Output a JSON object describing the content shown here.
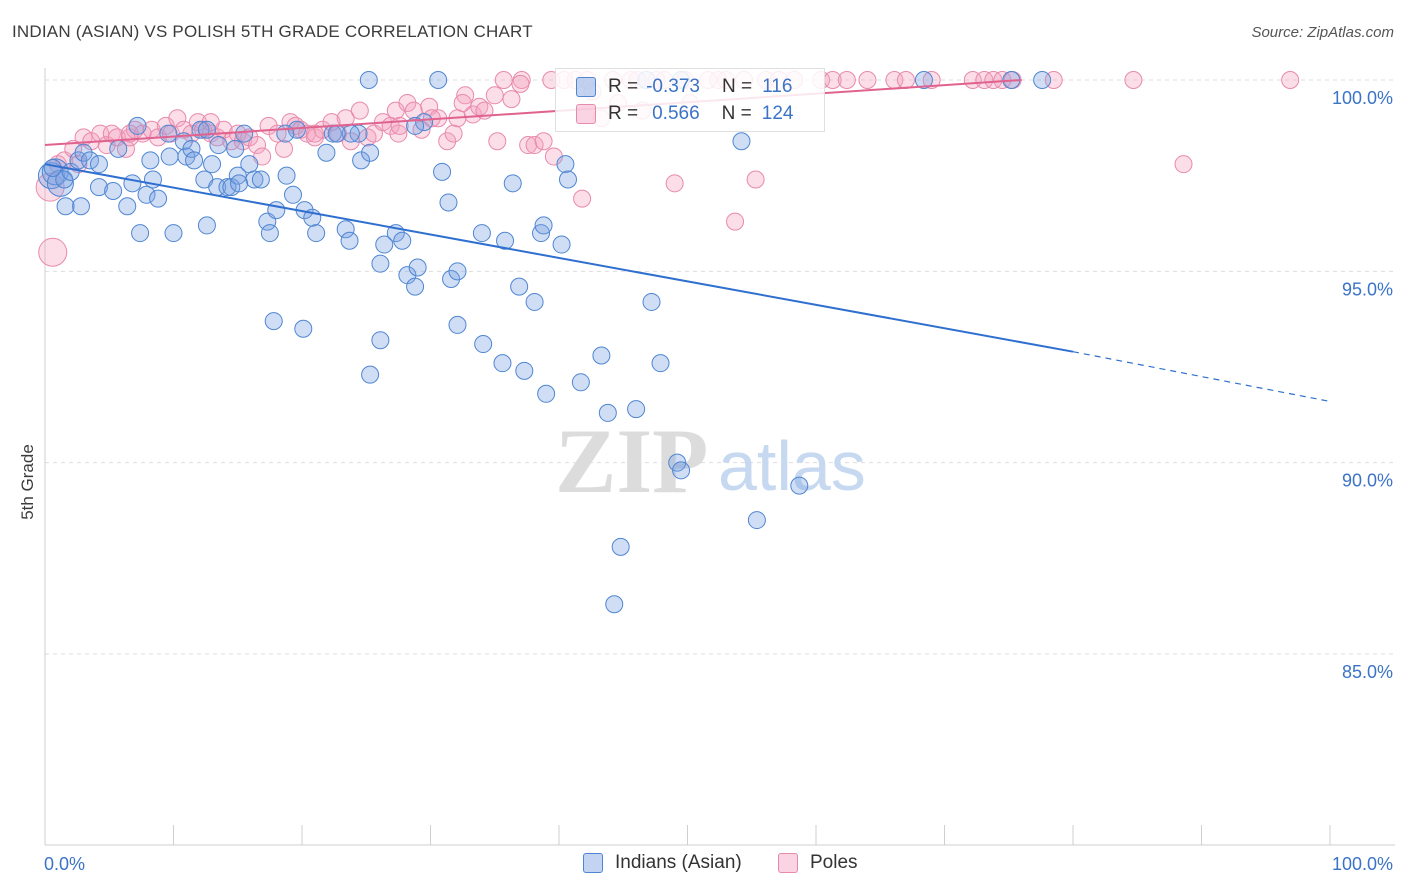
{
  "header": {
    "title": "INDIAN (ASIAN) VS POLISH 5TH GRADE CORRELATION CHART",
    "source": "Source: ZipAtlas.com"
  },
  "colors": {
    "blue_fill": "rgba(120,160,225,0.35)",
    "blue_stroke": "#4f86d2",
    "blue_line": "#2f6fd0",
    "pink_fill": "rgba(244,160,190,0.35)",
    "pink_stroke": "#e88aac",
    "pink_line": "#e0628e",
    "tick_text": "#3b73c6",
    "grid": "#dddddd"
  },
  "legend_top": {
    "rows": [
      {
        "r_label": "R =",
        "r_value": "-0.373",
        "n_label": "N =",
        "n_value": "116"
      },
      {
        "r_label": "R =",
        "r_value": "0.566",
        "n_label": "N =",
        "n_value": "124"
      }
    ]
  },
  "legend_bottom": [
    "Indians (Asian)",
    "Poles"
  ],
  "chart_data": {
    "type": "scatter",
    "title": "INDIAN (ASIAN) VS POLISH 5TH GRADE CORRELATION CHART",
    "xlabel": "",
    "ylabel": "5th Grade",
    "xlim": [
      0,
      100
    ],
    "ylim": [
      80.2,
      100.4
    ],
    "x_tick_labels": [
      "0.0%",
      "100.0%"
    ],
    "y_ticks": [
      100,
      95,
      90,
      85
    ],
    "y_tick_labels": [
      "100.0%",
      "95.0%",
      "90.0%",
      "85.0%"
    ],
    "watermark": "ZIPatlas",
    "series": [
      {
        "name": "Indians (Asian)",
        "r": -0.373,
        "n": 116,
        "trend": {
          "x0": 0,
          "y0": 97.8,
          "x1": 80,
          "y1": 92.9,
          "dash_to_x": 100,
          "dash_to_y": 91.6
        },
        "points": [
          [
            0.5,
            97.5
          ],
          [
            0.8,
            97.6
          ],
          [
            1.2,
            97.3
          ],
          [
            1.5,
            97.4
          ],
          [
            0.6,
            97.7
          ],
          [
            2.0,
            97.6
          ],
          [
            2.6,
            97.9
          ],
          [
            3.0,
            98.1
          ],
          [
            3.5,
            97.9
          ],
          [
            4.2,
            97.8
          ],
          [
            5.7,
            98.2
          ],
          [
            2.8,
            96.7
          ],
          [
            4.2,
            97.2
          ],
          [
            5.3,
            97.1
          ],
          [
            6.4,
            96.7
          ],
          [
            6.8,
            97.3
          ],
          [
            7.4,
            96.0
          ],
          [
            7.9,
            97.0
          ],
          [
            8.2,
            97.9
          ],
          [
            8.4,
            97.4
          ],
          [
            8.8,
            96.9
          ],
          [
            9.7,
            98.0
          ],
          [
            10.0,
            96.0
          ],
          [
            10.8,
            98.4
          ],
          [
            11.0,
            98.0
          ],
          [
            11.4,
            98.2
          ],
          [
            11.6,
            97.9
          ],
          [
            12.1,
            98.7
          ],
          [
            12.4,
            97.4
          ],
          [
            12.6,
            96.2
          ],
          [
            13.0,
            97.8
          ],
          [
            13.4,
            97.2
          ],
          [
            13.5,
            98.3
          ],
          [
            14.2,
            97.2
          ],
          [
            14.5,
            97.2
          ],
          [
            14.8,
            98.2
          ],
          [
            15.0,
            97.5
          ],
          [
            15.5,
            98.6
          ],
          [
            15.9,
            97.8
          ],
          [
            16.3,
            97.4
          ],
          [
            16.8,
            97.4
          ],
          [
            17.3,
            96.3
          ],
          [
            17.5,
            96.0
          ],
          [
            18.0,
            96.6
          ],
          [
            18.8,
            97.5
          ],
          [
            19.3,
            97.0
          ],
          [
            19.6,
            98.7
          ],
          [
            20.2,
            96.6
          ],
          [
            20.8,
            96.4
          ],
          [
            21.1,
            96.0
          ],
          [
            21.9,
            98.1
          ],
          [
            22.4,
            98.6
          ],
          [
            23.4,
            96.1
          ],
          [
            23.7,
            95.8
          ],
          [
            24.4,
            98.6
          ],
          [
            24.6,
            97.9
          ],
          [
            25.3,
            98.1
          ],
          [
            26.1,
            95.2
          ],
          [
            26.4,
            95.7
          ],
          [
            27.3,
            96.0
          ],
          [
            27.8,
            95.8
          ],
          [
            28.2,
            94.9
          ],
          [
            28.8,
            94.6
          ],
          [
            29.0,
            95.1
          ],
          [
            29.5,
            98.9
          ],
          [
            26.1,
            93.2
          ],
          [
            25.3,
            92.3
          ],
          [
            20.1,
            93.5
          ],
          [
            17.8,
            93.7
          ],
          [
            30.9,
            97.6
          ],
          [
            31.6,
            94.8
          ],
          [
            32.1,
            95.0
          ],
          [
            32.1,
            93.6
          ],
          [
            34.0,
            96.0
          ],
          [
            34.1,
            93.1
          ],
          [
            35.6,
            92.6
          ],
          [
            35.8,
            95.8
          ],
          [
            36.9,
            94.6
          ],
          [
            37.3,
            92.4
          ],
          [
            38.1,
            94.2
          ],
          [
            38.6,
            96.0
          ],
          [
            38.8,
            96.2
          ],
          [
            39.0,
            91.8
          ],
          [
            40.2,
            95.7
          ],
          [
            40.5,
            97.8
          ],
          [
            40.7,
            97.4
          ],
          [
            41.7,
            92.1
          ],
          [
            43.3,
            92.8
          ],
          [
            43.8,
            91.3
          ],
          [
            46.0,
            91.4
          ],
          [
            47.2,
            94.2
          ],
          [
            47.9,
            92.6
          ],
          [
            49.2,
            90.0
          ],
          [
            49.5,
            89.8
          ],
          [
            44.8,
            87.8
          ],
          [
            44.3,
            86.3
          ],
          [
            55.4,
            88.5
          ],
          [
            58.7,
            89.4
          ],
          [
            54.2,
            98.4
          ],
          [
            25.2,
            100.0
          ],
          [
            30.6,
            100.0
          ],
          [
            28.8,
            98.8
          ],
          [
            31.4,
            96.8
          ],
          [
            36.4,
            97.3
          ],
          [
            12.6,
            98.7
          ],
          [
            7.2,
            98.8
          ],
          [
            9.6,
            98.6
          ],
          [
            1.6,
            96.7
          ],
          [
            23.8,
            98.6
          ],
          [
            68.4,
            100.0
          ],
          [
            77.6,
            100.0
          ],
          [
            75.2,
            100.0
          ],
          [
            46.8,
            100.0
          ],
          [
            49.5,
            100.0
          ],
          [
            18.7,
            98.6
          ],
          [
            15.1,
            97.3
          ],
          [
            22.7,
            98.6
          ]
        ]
      },
      {
        "name": "Poles",
        "r": 0.566,
        "n": 124,
        "trend": {
          "x0": 0,
          "y0": 98.3,
          "x1": 76,
          "y1": 100.0
        },
        "points": [
          [
            0.4,
            97.2
          ],
          [
            0.6,
            95.5
          ],
          [
            1.0,
            97.8
          ],
          [
            1.5,
            97.9
          ],
          [
            2.2,
            98.2
          ],
          [
            2.6,
            97.8
          ],
          [
            3.0,
            98.5
          ],
          [
            3.6,
            98.4
          ],
          [
            4.3,
            98.6
          ],
          [
            4.8,
            98.3
          ],
          [
            5.2,
            98.6
          ],
          [
            5.6,
            98.5
          ],
          [
            6.3,
            98.2
          ],
          [
            6.6,
            98.5
          ],
          [
            7.0,
            98.7
          ],
          [
            7.6,
            98.6
          ],
          [
            8.3,
            98.7
          ],
          [
            8.8,
            98.5
          ],
          [
            9.4,
            98.8
          ],
          [
            9.8,
            98.6
          ],
          [
            10.3,
            99.0
          ],
          [
            10.8,
            98.7
          ],
          [
            11.4,
            98.6
          ],
          [
            11.9,
            98.9
          ],
          [
            12.3,
            98.7
          ],
          [
            12.9,
            98.6
          ],
          [
            13.4,
            98.5
          ],
          [
            13.9,
            98.7
          ],
          [
            14.5,
            98.4
          ],
          [
            15.0,
            98.6
          ],
          [
            15.4,
            98.4
          ],
          [
            15.9,
            98.5
          ],
          [
            16.5,
            98.3
          ],
          [
            16.9,
            98.0
          ],
          [
            17.4,
            98.8
          ],
          [
            18.1,
            98.6
          ],
          [
            18.6,
            98.2
          ],
          [
            19.1,
            98.9
          ],
          [
            19.5,
            98.8
          ],
          [
            19.9,
            98.7
          ],
          [
            20.4,
            98.6
          ],
          [
            21.0,
            98.5
          ],
          [
            21.6,
            98.7
          ],
          [
            22.3,
            98.9
          ],
          [
            22.8,
            98.6
          ],
          [
            23.4,
            99.0
          ],
          [
            23.8,
            98.4
          ],
          [
            24.5,
            99.2
          ],
          [
            25.1,
            98.5
          ],
          [
            25.6,
            98.6
          ],
          [
            26.3,
            98.9
          ],
          [
            26.9,
            98.8
          ],
          [
            27.3,
            99.2
          ],
          [
            27.5,
            98.6
          ],
          [
            28.2,
            99.4
          ],
          [
            28.7,
            99.2
          ],
          [
            29.3,
            98.7
          ],
          [
            29.9,
            99.3
          ],
          [
            30.6,
            99.0
          ],
          [
            31.3,
            98.4
          ],
          [
            31.8,
            98.6
          ],
          [
            32.1,
            99.0
          ],
          [
            32.7,
            99.6
          ],
          [
            33.3,
            99.1
          ],
          [
            33.8,
            99.3
          ],
          [
            34.2,
            99.2
          ],
          [
            35.0,
            99.6
          ],
          [
            35.7,
            100.0
          ],
          [
            36.3,
            99.5
          ],
          [
            37.1,
            100.0
          ],
          [
            37.6,
            98.3
          ],
          [
            38.1,
            98.3
          ],
          [
            38.8,
            98.4
          ],
          [
            39.4,
            100.0
          ],
          [
            39.6,
            98.0
          ],
          [
            40.4,
            100.0
          ],
          [
            41.3,
            100.0
          ],
          [
            41.8,
            96.9
          ],
          [
            42.2,
            100.0
          ],
          [
            42.6,
            99.7
          ],
          [
            43.3,
            99.0
          ],
          [
            44.2,
            100.0
          ],
          [
            44.6,
            99.4
          ],
          [
            45.6,
            100.0
          ],
          [
            46.1,
            100.0
          ],
          [
            46.5,
            99.2
          ],
          [
            47.6,
            100.0
          ],
          [
            48.2,
            100.0
          ],
          [
            49.0,
            97.3
          ],
          [
            49.8,
            100.0
          ],
          [
            50.2,
            99.4
          ],
          [
            51.6,
            100.0
          ],
          [
            52.4,
            100.0
          ],
          [
            53.0,
            100.0
          ],
          [
            53.7,
            96.3
          ],
          [
            54.4,
            100.0
          ],
          [
            55.3,
            97.4
          ],
          [
            56.1,
            100.0
          ],
          [
            57.1,
            100.0
          ],
          [
            58.3,
            100.0
          ],
          [
            60.4,
            100.0
          ],
          [
            61.3,
            100.0
          ],
          [
            62.4,
            100.0
          ],
          [
            64.0,
            100.0
          ],
          [
            66.1,
            100.0
          ],
          [
            67.0,
            100.0
          ],
          [
            69.0,
            100.0
          ],
          [
            72.2,
            100.0
          ],
          [
            73.1,
            100.0
          ],
          [
            73.8,
            100.0
          ],
          [
            74.5,
            100.0
          ],
          [
            75.3,
            100.0
          ],
          [
            78.5,
            100.0
          ],
          [
            84.7,
            100.0
          ],
          [
            88.6,
            97.8
          ],
          [
            96.9,
            100.0
          ],
          [
            32.5,
            99.4
          ],
          [
            30.1,
            99.0
          ],
          [
            35.2,
            98.4
          ],
          [
            37.0,
            99.9
          ],
          [
            27.6,
            98.8
          ],
          [
            21.0,
            98.6
          ],
          [
            12.9,
            98.9
          ],
          [
            6.6,
            98.6
          ]
        ]
      }
    ]
  }
}
